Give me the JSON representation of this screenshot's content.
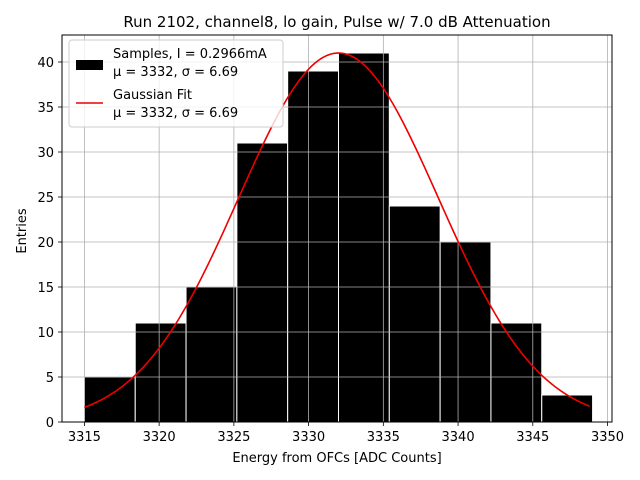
{
  "chart_data": {
    "type": "bar",
    "title": "Run 2102, channel8, lo gain, Pulse w/ 7.0 dB Attenuation",
    "xlabel": "Energy from OFCs [ADC Counts]",
    "ylabel": "Entries",
    "xlim": [
      3313.5,
      3350.3
    ],
    "ylim": [
      0,
      43
    ],
    "grid": true,
    "legend_position": "top-left",
    "xticks": [
      "3315",
      "3320",
      "3325",
      "3330",
      "3335",
      "3340",
      "3345",
      "3350"
    ],
    "yticks": [
      "0",
      "5",
      "10",
      "15",
      "20",
      "25",
      "30",
      "35",
      "40"
    ],
    "bins": [
      {
        "x0": 3315.0,
        "x1": 3318.4,
        "value": 5
      },
      {
        "x0": 3318.4,
        "x1": 3321.8,
        "value": 11
      },
      {
        "x0": 3321.8,
        "x1": 3325.2,
        "value": 15
      },
      {
        "x0": 3325.2,
        "x1": 3328.6,
        "value": 31
      },
      {
        "x0": 3328.6,
        "x1": 3332.0,
        "value": 39
      },
      {
        "x0": 3332.0,
        "x1": 3335.4,
        "value": 41
      },
      {
        "x0": 3335.4,
        "x1": 3338.8,
        "value": 24
      },
      {
        "x0": 3338.8,
        "x1": 3342.2,
        "value": 20
      },
      {
        "x0": 3342.2,
        "x1": 3345.6,
        "value": 11
      },
      {
        "x0": 3345.6,
        "x1": 3349.0,
        "value": 3
      }
    ],
    "fit": {
      "type": "gaussian",
      "mu": 3332,
      "sigma": 6.69,
      "amplitude": 41,
      "x_range": [
        3315.0,
        3348.8
      ]
    },
    "series": [
      {
        "name": "Samples, I = 0.2966mA",
        "stats": "μ = 3332, σ = 6.69",
        "color": "#000000",
        "kind": "histogram"
      },
      {
        "name": "Gaussian Fit",
        "stats": "μ = 3332, σ = 6.69",
        "color": "#ee0000",
        "kind": "line"
      }
    ]
  }
}
